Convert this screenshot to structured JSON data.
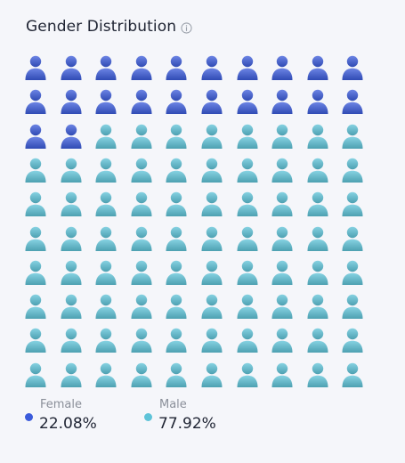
{
  "header": {
    "title": "Gender Distribution",
    "info_icon": "info-circle-icon"
  },
  "chart_data": {
    "type": "pictogram",
    "title": "Gender Distribution",
    "total_icons": 100,
    "rows": 10,
    "columns": 10,
    "series": [
      {
        "name": "Female",
        "value": 22.08,
        "display": "22.08%",
        "color": "#3b5bdb",
        "icons": 22
      },
      {
        "name": "Male",
        "value": 77.92,
        "display": "77.92%",
        "color": "#5ec3d8",
        "icons": 78
      }
    ],
    "icon": "person-icon"
  },
  "legend": [
    {
      "label": "Female",
      "value": "22.08%",
      "color": "#3b5bdb"
    },
    {
      "label": "Male",
      "value": "77.92%",
      "color": "#5ec3d8"
    }
  ]
}
